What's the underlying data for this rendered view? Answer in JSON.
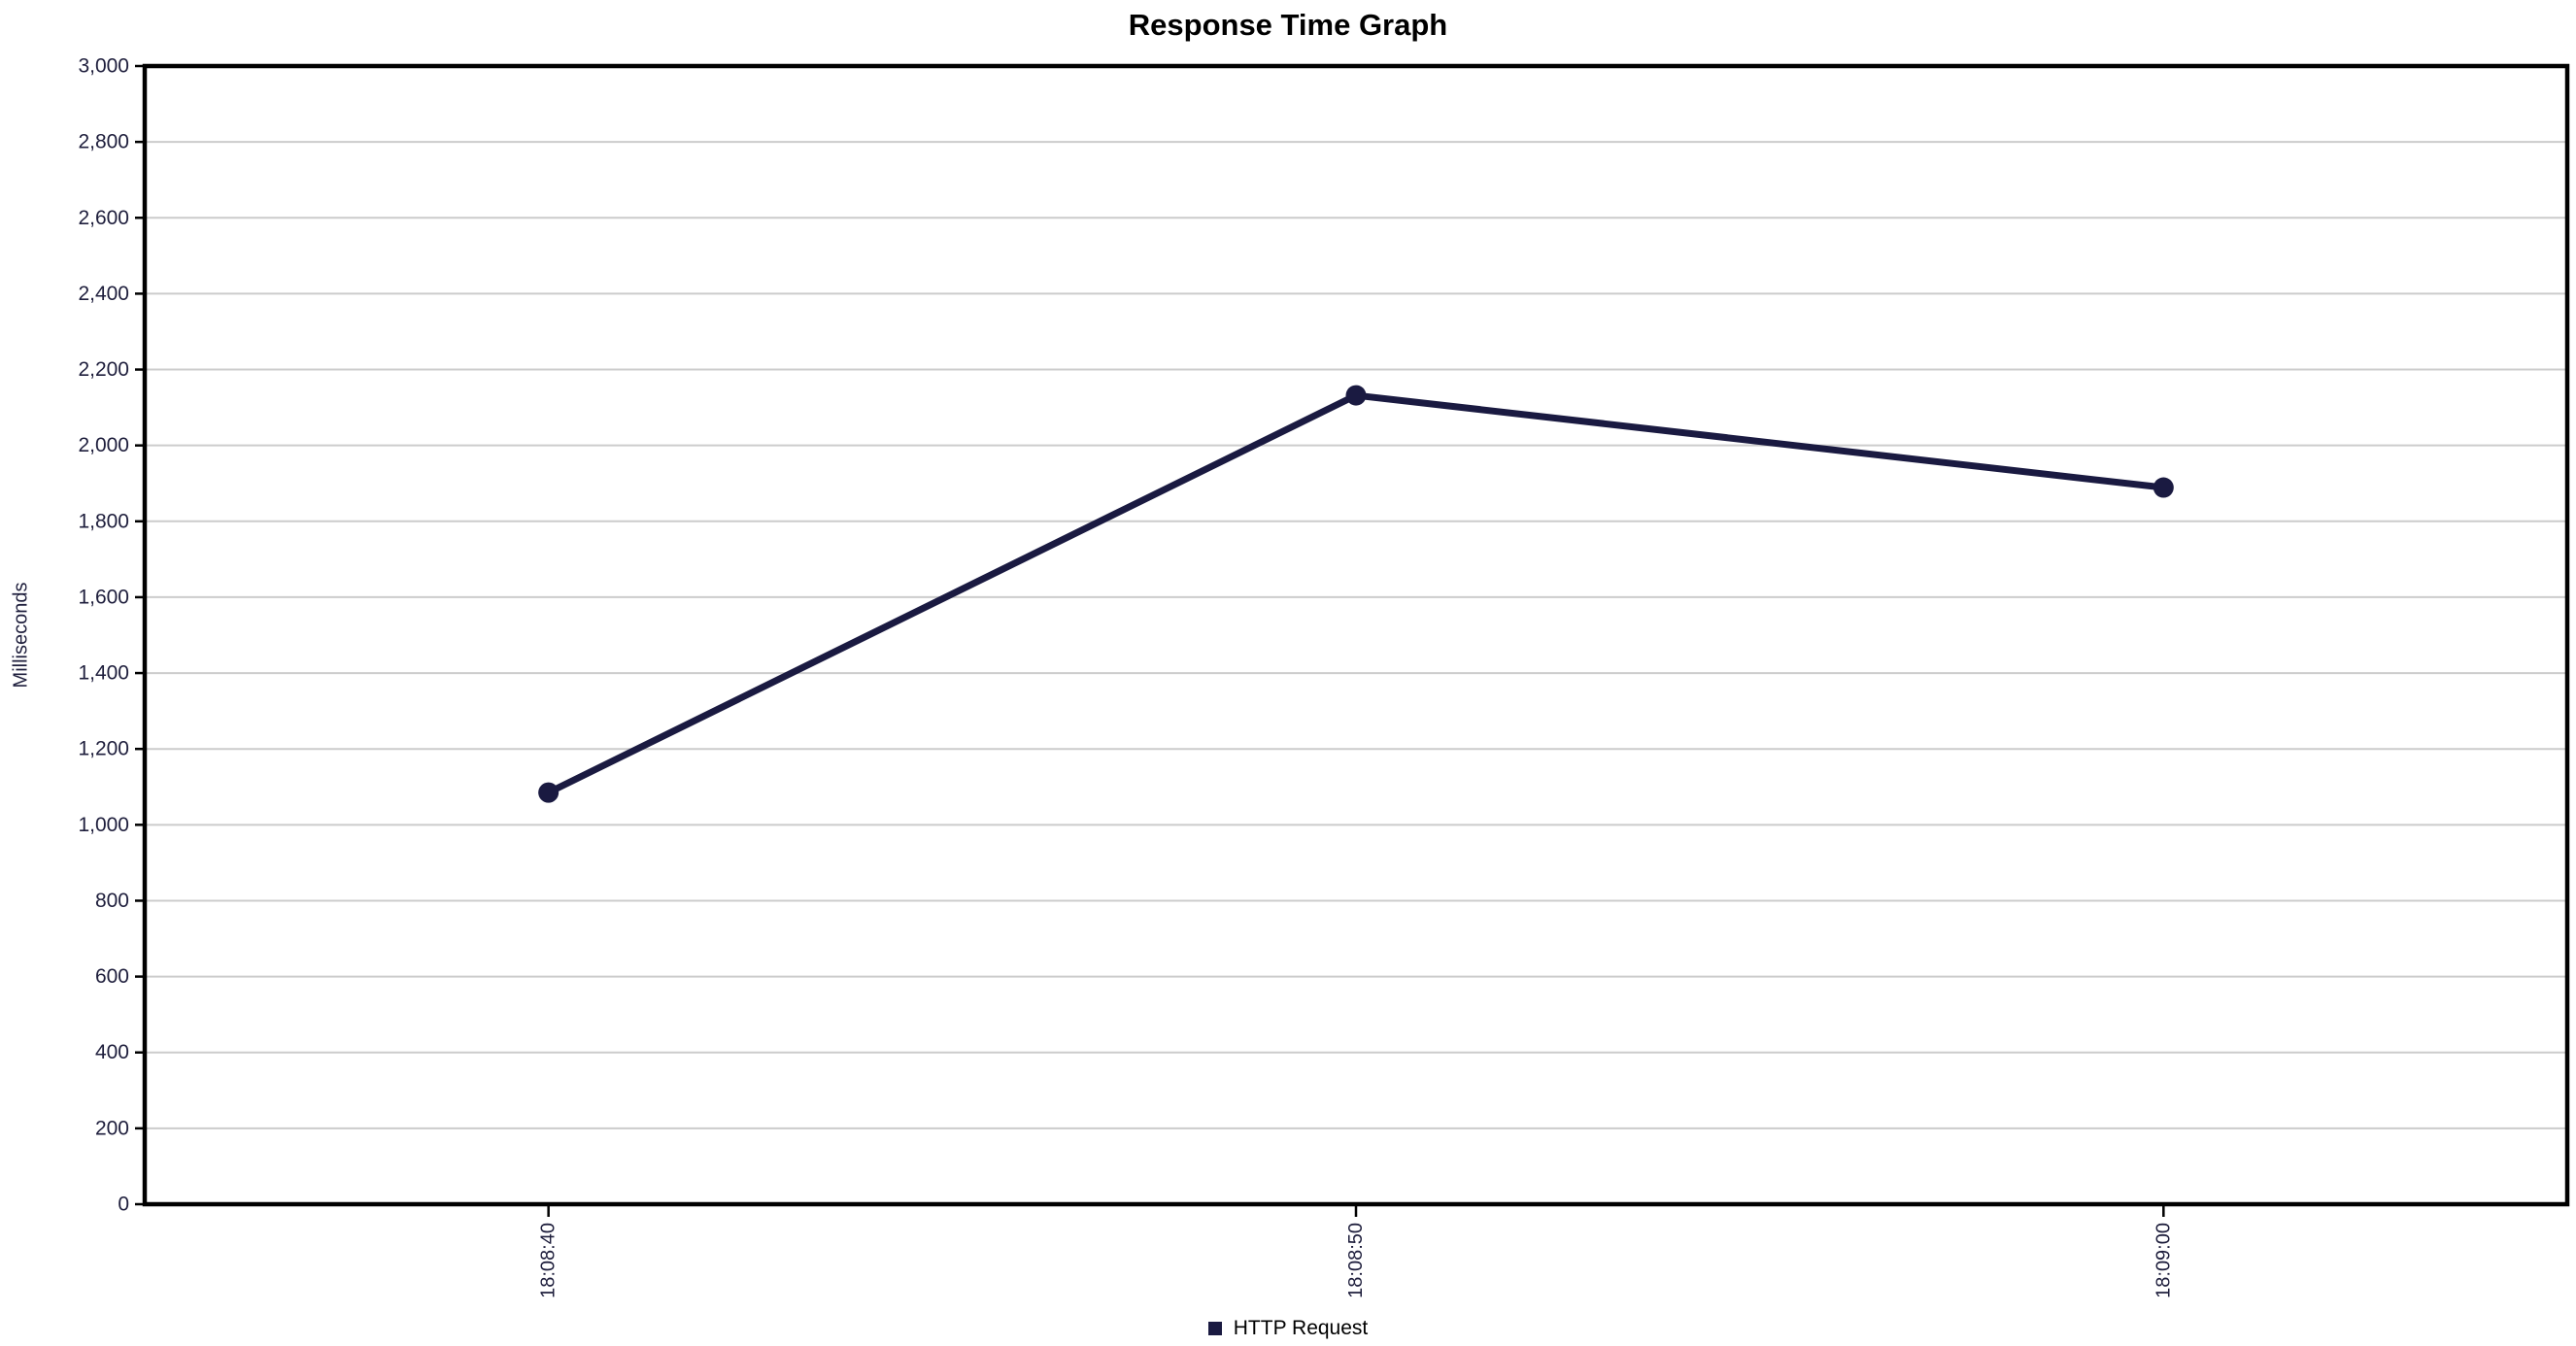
{
  "window": {
    "background": "#ffffff"
  },
  "chart_data": {
    "type": "line",
    "title": "Response Time Graph",
    "xlabel": "",
    "ylabel": "Milliseconds",
    "ylim": [
      0,
      3000
    ],
    "y_ticks": [
      {
        "value": 0,
        "label": "0"
      },
      {
        "value": 200,
        "label": "200"
      },
      {
        "value": 400,
        "label": "400"
      },
      {
        "value": 600,
        "label": "600"
      },
      {
        "value": 800,
        "label": "800"
      },
      {
        "value": 1000,
        "label": "1,000"
      },
      {
        "value": 1200,
        "label": "1,200"
      },
      {
        "value": 1400,
        "label": "1,400"
      },
      {
        "value": 1600,
        "label": "1,600"
      },
      {
        "value": 1800,
        "label": "1,800"
      },
      {
        "value": 2000,
        "label": "2,000"
      },
      {
        "value": 2200,
        "label": "2,200"
      },
      {
        "value": 2400,
        "label": "2,400"
      },
      {
        "value": 2600,
        "label": "2,600"
      },
      {
        "value": 2800,
        "label": "2,800"
      },
      {
        "value": 3000,
        "label": "3,000"
      }
    ],
    "categories": [
      "18:08:40",
      "18:08:50",
      "18:09:00"
    ],
    "series": [
      {
        "name": "HTTP Request",
        "color": "#1a1a41",
        "values": [
          1085,
          2132,
          1889
        ]
      }
    ],
    "grid": "horizontal-only",
    "legend_position": "bottom",
    "colors": {
      "axis": "#000000",
      "grid": "#cccccc",
      "tick_label": "#1e1e3c",
      "title": "#000000"
    }
  }
}
